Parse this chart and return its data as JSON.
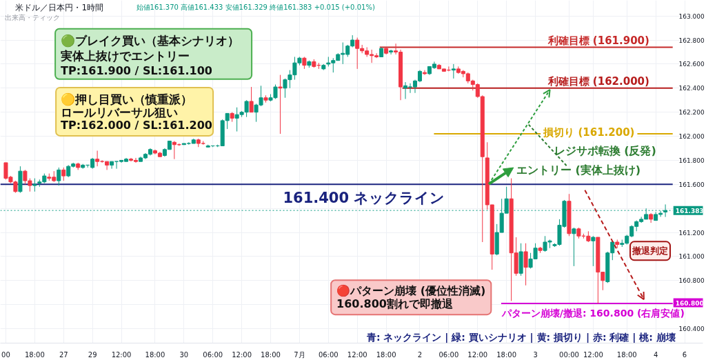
{
  "chart_data": {
    "type": "candlestick",
    "title": "米ドル／日本円・1時間",
    "subtitle": "始値161.370 高値161.433 安値161.329 終値161.383 +0.015 (+0.01%)",
    "categories": [
      "00",
      null,
      null,
      null,
      null,
      null,
      "18:00",
      null,
      null,
      null,
      null,
      null,
      "27",
      null,
      null,
      null,
      null,
      null,
      "29",
      null,
      null,
      null,
      null,
      null,
      "12:00",
      null,
      null,
      null,
      null,
      null,
      null,
      "18:00",
      null,
      null,
      null,
      null,
      null,
      "30",
      null,
      null,
      null,
      null,
      null,
      "06:00",
      null,
      null,
      null,
      null,
      null,
      "12:00",
      null,
      null,
      null,
      null,
      null,
      "18:00",
      null,
      null,
      null,
      null,
      null,
      "7月",
      null,
      null,
      null,
      null,
      null,
      "06:00",
      null,
      null,
      null,
      null,
      null,
      "12:00",
      null,
      null,
      null,
      null,
      null,
      "18:00",
      null,
      null,
      null,
      null,
      null,
      null,
      "2",
      null,
      null,
      null,
      null,
      null,
      "06:00",
      null,
      null,
      null,
      null,
      null,
      "12:00",
      null,
      null,
      null,
      null,
      null,
      "18:00",
      null,
      null,
      null,
      null,
      null,
      "3",
      null,
      null,
      null,
      null,
      null,
      null,
      "00:00",
      null,
      null,
      null,
      null,
      "12:00",
      null,
      null,
      null,
      null,
      null,
      null,
      "18:00",
      null,
      null,
      null,
      null,
      null,
      "4",
      null,
      null,
      null,
      null,
      null,
      "6"
    ],
    "ohlc": [
      [
        161.78,
        161.78,
        161.64,
        161.65
      ],
      [
        161.66,
        161.67,
        161.61,
        161.62
      ],
      [
        161.62,
        161.63,
        161.53,
        161.54
      ],
      [
        161.54,
        161.75,
        161.53,
        161.71
      ],
      [
        161.71,
        161.72,
        161.6,
        161.63
      ],
      [
        161.63,
        161.65,
        161.54,
        161.59
      ],
      [
        161.59,
        161.65,
        161.54,
        161.6
      ],
      [
        161.61,
        161.64,
        161.58,
        161.62
      ],
      [
        161.62,
        161.69,
        161.61,
        161.67
      ],
      [
        161.66,
        161.69,
        161.63,
        161.65
      ],
      [
        161.66,
        161.71,
        161.62,
        161.63
      ],
      [
        161.63,
        161.74,
        161.59,
        161.72
      ],
      [
        161.72,
        161.74,
        161.63,
        161.67
      ],
      [
        161.67,
        161.76,
        161.66,
        161.75
      ],
      [
        161.75,
        161.78,
        161.74,
        161.77
      ],
      [
        161.77,
        161.78,
        161.72,
        161.74
      ],
      [
        161.74,
        161.77,
        161.73,
        161.76
      ],
      [
        161.76,
        161.76,
        161.74,
        161.76
      ],
      [
        161.74,
        161.82,
        161.73,
        161.81
      ],
      [
        161.81,
        161.88,
        161.75,
        161.79
      ],
      [
        161.79,
        161.8,
        161.78,
        161.79
      ],
      [
        161.79,
        161.79,
        161.72,
        161.76
      ],
      [
        161.76,
        161.79,
        161.73,
        161.79
      ],
      [
        161.79,
        161.79,
        161.73,
        161.79
      ],
      [
        161.79,
        161.8,
        161.78,
        161.8
      ],
      [
        161.79,
        161.82,
        161.79,
        161.81
      ],
      [
        161.81,
        161.82,
        161.79,
        161.8
      ],
      [
        161.8,
        161.82,
        161.78,
        161.79
      ],
      [
        161.79,
        161.83,
        161.79,
        161.82
      ],
      [
        161.82,
        161.86,
        161.81,
        161.85
      ],
      [
        161.85,
        161.9,
        161.84,
        161.89
      ],
      [
        161.88,
        161.89,
        161.85,
        161.86
      ],
      [
        161.86,
        161.87,
        161.83,
        161.83
      ],
      [
        161.84,
        161.9,
        161.83,
        161.89
      ],
      [
        161.89,
        161.96,
        161.89,
        161.96
      ],
      [
        161.95,
        161.96,
        161.81,
        161.93
      ],
      [
        161.93,
        161.94,
        161.92,
        161.93
      ],
      [
        161.93,
        161.94,
        161.93,
        161.94
      ],
      [
        161.94,
        161.95,
        161.93,
        161.94
      ],
      [
        161.94,
        161.98,
        161.94,
        161.97
      ],
      [
        161.97,
        161.98,
        161.91,
        161.94
      ],
      [
        161.94,
        161.96,
        161.93,
        161.94
      ],
      [
        161.91,
        161.93,
        161.91,
        161.92
      ],
      [
        161.92,
        161.92,
        161.91,
        161.92
      ],
      [
        161.92,
        161.93,
        161.91,
        161.92
      ],
      [
        161.92,
        162.14,
        161.92,
        162.13
      ],
      [
        162.13,
        162.19,
        162.06,
        162.19
      ],
      [
        162.19,
        162.2,
        162.12,
        162.15
      ],
      [
        162.15,
        162.24,
        162.04,
        162.18
      ],
      [
        162.18,
        162.21,
        162.16,
        162.2
      ],
      [
        162.2,
        162.3,
        162.16,
        162.29
      ],
      [
        162.29,
        162.41,
        162.2,
        162.2
      ],
      [
        162.2,
        162.27,
        162.12,
        162.26
      ],
      [
        162.26,
        162.42,
        162.25,
        162.32
      ],
      [
        162.32,
        162.34,
        162.28,
        162.3
      ],
      [
        162.3,
        162.35,
        162.29,
        162.32
      ],
      [
        162.32,
        162.43,
        162.31,
        162.41
      ],
      [
        162.41,
        162.51,
        162.02,
        162.4
      ],
      [
        162.4,
        162.48,
        162.32,
        162.47
      ],
      [
        162.47,
        162.55,
        162.4,
        162.51
      ],
      [
        162.51,
        162.66,
        162.47,
        162.61
      ],
      [
        162.61,
        162.66,
        162.59,
        162.65
      ],
      [
        162.65,
        162.66,
        162.56,
        162.59
      ],
      [
        162.59,
        162.63,
        162.57,
        162.62
      ],
      [
        162.62,
        162.64,
        162.57,
        162.58
      ],
      [
        162.59,
        162.61,
        162.56,
        162.59
      ],
      [
        162.56,
        162.6,
        162.55,
        162.59
      ],
      [
        162.6,
        162.66,
        162.58,
        162.61
      ],
      [
        162.61,
        162.65,
        162.53,
        162.63
      ],
      [
        162.63,
        162.69,
        162.63,
        162.68
      ],
      [
        162.68,
        162.78,
        162.6,
        162.69
      ],
      [
        162.68,
        162.76,
        162.66,
        162.75
      ],
      [
        162.75,
        162.84,
        162.74,
        162.8
      ],
      [
        162.8,
        162.82,
        162.56,
        162.73
      ],
      [
        162.73,
        162.76,
        162.69,
        162.71
      ],
      [
        162.71,
        162.74,
        162.66,
        162.68
      ],
      [
        162.68,
        162.72,
        162.61,
        162.67
      ],
      [
        162.67,
        162.69,
        162.65,
        162.66
      ],
      [
        162.66,
        162.74,
        162.66,
        162.73
      ],
      [
        162.73,
        162.74,
        162.68,
        162.69
      ],
      [
        162.7,
        162.72,
        162.68,
        162.71
      ],
      [
        162.71,
        162.77,
        162.68,
        162.7
      ],
      [
        162.7,
        162.72,
        162.3,
        162.41
      ],
      [
        162.4,
        162.45,
        162.31,
        162.42
      ],
      [
        162.41,
        162.44,
        162.36,
        162.41
      ],
      [
        162.41,
        162.47,
        162.36,
        162.46
      ],
      [
        162.46,
        162.55,
        162.45,
        162.54
      ],
      [
        162.53,
        162.55,
        162.51,
        162.52
      ],
      [
        162.52,
        162.58,
        162.51,
        162.58
      ],
      [
        162.57,
        162.62,
        162.56,
        162.6
      ],
      [
        162.59,
        162.6,
        162.56,
        162.56
      ],
      [
        162.56,
        162.56,
        162.54,
        162.54
      ],
      [
        162.55,
        162.58,
        162.54,
        162.55
      ],
      [
        162.55,
        162.6,
        162.48,
        162.56
      ],
      [
        162.56,
        162.58,
        162.52,
        162.53
      ],
      [
        162.54,
        162.55,
        162.49,
        162.52
      ],
      [
        162.52,
        162.53,
        162.44,
        162.46
      ],
      [
        162.46,
        162.47,
        162.38,
        162.43
      ],
      [
        162.43,
        162.44,
        162.32,
        162.33
      ],
      [
        162.33,
        162.34,
        161.12,
        161.83
      ],
      [
        161.82,
        161.95,
        161.39,
        161.43
      ],
      [
        161.43,
        161.43,
        160.89,
        161.02
      ],
      [
        161.02,
        161.27,
        161.01,
        161.2
      ],
      [
        161.2,
        161.48,
        161.2,
        161.36
      ],
      [
        161.36,
        161.58,
        161.36,
        161.48
      ],
      [
        161.48,
        161.65,
        160.63,
        161.03
      ],
      [
        161.03,
        161.16,
        160.84,
        160.86
      ],
      [
        160.86,
        161.11,
        160.84,
        161.04
      ],
      [
        161.04,
        161.11,
        160.76,
        160.91
      ],
      [
        160.91,
        161.03,
        160.9,
        160.98
      ],
      [
        160.98,
        161.11,
        160.98,
        161.07
      ],
      [
        161.07,
        161.08,
        161.03,
        161.05
      ],
      [
        161.05,
        161.17,
        161.04,
        161.12
      ],
      [
        161.12,
        161.14,
        161.07,
        161.13
      ],
      [
        161.09,
        161.11,
        161.08,
        161.1
      ],
      [
        161.1,
        161.31,
        161.09,
        161.26
      ],
      [
        161.25,
        161.47,
        161.24,
        161.46
      ],
      [
        161.46,
        161.52,
        161.17,
        161.19
      ],
      [
        161.19,
        161.24,
        160.92,
        161.23
      ],
      [
        161.23,
        161.24,
        161.15,
        161.17
      ],
      [
        161.17,
        161.19,
        161.15,
        161.17
      ],
      [
        161.17,
        161.21,
        161.12,
        161.13
      ],
      [
        161.13,
        161.17,
        160.92,
        161.16
      ],
      [
        161.16,
        161.16,
        160.61,
        160.87
      ],
      [
        160.87,
        160.87,
        160.72,
        160.8
      ],
      [
        160.79,
        161.04,
        160.78,
        161.03
      ],
      [
        161.03,
        161.13,
        160.97,
        161.12
      ],
      [
        161.12,
        161.14,
        161.07,
        161.1
      ],
      [
        161.1,
        161.14,
        161.08,
        161.11
      ],
      [
        161.11,
        161.18,
        161.1,
        161.17
      ],
      [
        161.17,
        161.26,
        161.16,
        161.25
      ],
      [
        161.25,
        161.3,
        161.21,
        161.29
      ],
      [
        161.29,
        161.33,
        161.28,
        161.31
      ],
      [
        161.31,
        161.4,
        161.31,
        161.35
      ],
      [
        161.35,
        161.36,
        161.28,
        161.31
      ],
      [
        161.3,
        161.37,
        161.3,
        161.35
      ],
      [
        161.35,
        161.38,
        161.33,
        161.36
      ],
      [
        161.37,
        161.433,
        161.329,
        161.383
      ],
      null,
      null,
      null,
      null
    ],
    "colors": [
      "#f23645",
      "#f23645",
      "#f23645",
      "#089981",
      "#f23645",
      "#f23645",
      "#089981",
      "#089981",
      "#089981",
      "#f23645",
      "#f23645",
      "#089981",
      "#f23645",
      "#089981",
      "#089981",
      "#f23645",
      "#089981",
      "#089981",
      "#089981",
      "#f23645",
      "#f23645",
      "#f23645",
      "#089981",
      "#089981",
      "#089981",
      "#089981",
      "#f23645",
      "#f23645",
      "#089981",
      "#089981",
      "#089981",
      "#f23645",
      "#f23645",
      "#089981",
      "#089981",
      "#f23645",
      "#f23645",
      "#089981",
      "#089981",
      "#089981",
      "#f23645",
      "#f23645",
      "#089981",
      "#089981",
      "#089981",
      "#089981",
      "#089981",
      "#f23645",
      "#089981",
      "#089981",
      "#089981",
      "#f23645",
      "#089981",
      "#089981",
      "#f23645",
      "#089981",
      "#089981",
      "#f23645",
      "#089981",
      "#089981",
      "#089981",
      "#089981",
      "#f23645",
      "#089981",
      "#f23645",
      "#f23645",
      "#089981",
      "#089981",
      "#089981",
      "#089981",
      "#089981",
      "#089981",
      "#089981",
      "#f23645",
      "#f23645",
      "#f23645",
      "#f23645",
      "#f23645",
      "#089981",
      "#f23645",
      "#089981",
      "#f23645",
      "#f23645",
      "#089981",
      "#089981",
      "#089981",
      "#089981",
      "#f23645",
      "#089981",
      "#089981",
      "#f23645",
      "#f23645",
      "#f23645",
      "#089981",
      "#f23645",
      "#f23645",
      "#f23645",
      "#f23645",
      "#f23645",
      "#f23645",
      "#f23645",
      "#f23645",
      "#089981",
      "#089981",
      "#089981",
      "#f23645",
      "#f23645",
      "#089981",
      "#f23645",
      "#089981",
      "#089981",
      "#f23645",
      "#089981",
      "#089981",
      "#089981",
      "#089981",
      "#089981",
      "#f23645",
      "#089981",
      "#f23645",
      "#f23645",
      "#f23645",
      "#089981",
      "#f23645",
      "#f23645",
      "#089981",
      "#089981",
      "#f23645",
      "#089981",
      "#089981",
      "#089981",
      "#089981",
      "#089981",
      "#089981",
      "#f23645",
      "#089981",
      "#089981",
      "#089981",
      null,
      null,
      null,
      null
    ],
    "ylim": [
      160.28,
      163.13
    ],
    "yticks": [
      {
        "value": 160.4,
        "label": "160.400"
      },
      {
        "value": 160.6,
        "label": null
      },
      {
        "value": 160.8,
        "label": "160.800"
      },
      {
        "value": 161.0,
        "label": "161.000"
      },
      {
        "value": 161.2,
        "label": "161.200"
      },
      {
        "value": 161.4,
        "label": null
      },
      {
        "value": 161.6,
        "label": "161.600"
      },
      {
        "value": 161.8,
        "label": "161.800"
      },
      {
        "value": 162.0,
        "label": "162.000"
      },
      {
        "value": 162.2,
        "label": "162.200"
      },
      {
        "value": 162.4,
        "label": "162.400"
      },
      {
        "value": 162.6,
        "label": "162.600"
      },
      {
        "value": 162.8,
        "label": "162.800"
      },
      {
        "value": 163.0,
        "label": "163.000"
      }
    ],
    "grid": true,
    "ref_lines": [
      {
        "axis": "y",
        "value": 162.74,
        "label": "利確目標 (161.900)",
        "color": "#c62828"
      },
      {
        "axis": "y",
        "value": 162.4,
        "label": "利確目標 (162.000)",
        "color": "#b71c1c"
      },
      {
        "axis": "y",
        "value": 162.02,
        "label": "損切り (161.200)",
        "color": "#d9a800"
      },
      {
        "axis": "y",
        "value": 161.6,
        "label": "161.400 ネックライン",
        "color": "#1a237e"
      },
      {
        "axis": "y",
        "value": 161.383,
        "label": "161.383",
        "color": "#089981",
        "line_style": "dotted"
      },
      {
        "axis": "y",
        "value": 160.61,
        "color": "#d500d5"
      }
    ],
    "annotations": [
      "出来高・ティック",
      "🟢ブレイク買い（基本シナリオ）",
      "実体上抜けでエントリー",
      "TP:161.900 / SL:161.100",
      "🟡押し目買い（慎重派）",
      "ロールリバーサル狙い",
      "TP:162.000 / SL:161.200",
      "🔴パターン崩壊 (優位性消滅)",
      "160.800割れで即撤退",
      "レジサポ転換 (反発)",
      "エントリー (実体上抜け)",
      "撤退判定",
      "パターン崩壊/撤退: 160.800 (右肩安値)",
      "青: ネックライン | 緑: 買いシナリオ | 黄: 損切り | 赤: 利確 | 桃: 崩壊",
      "160.800"
    ]
  }
}
